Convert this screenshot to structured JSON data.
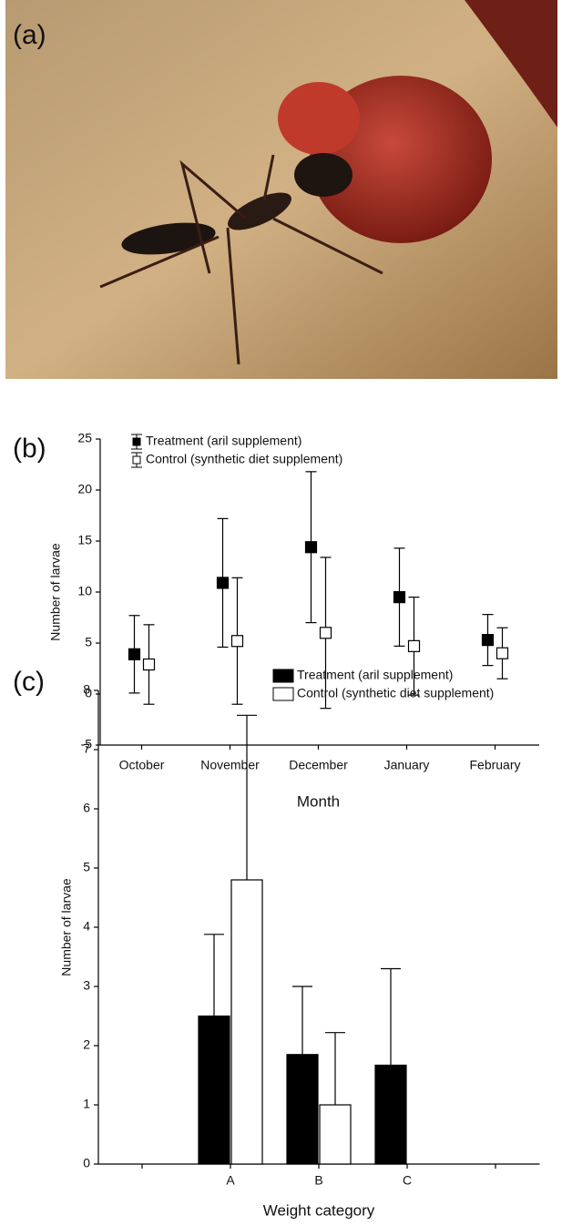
{
  "photo": {
    "label": "(a)"
  },
  "chart_data": [
    {
      "type": "scatter",
      "label": "(b)",
      "xlabel": "Month",
      "ylabel": "Number of larvae",
      "categories": [
        "October",
        "November",
        "December",
        "January",
        "February"
      ],
      "series": [
        {
          "name": "Treatment (aril supplement)",
          "color": "#000000",
          "values": [
            3.9,
            10.9,
            14.4,
            9.5,
            5.3
          ],
          "errors": [
            3.8,
            6.3,
            7.4,
            4.8,
            2.5
          ]
        },
        {
          "name": "Control (synthetic diet supplement)",
          "color": "#ffffff",
          "values": [
            2.9,
            5.2,
            6.0,
            4.7,
            4.0
          ],
          "errors": [
            3.9,
            6.2,
            7.4,
            4.8,
            2.5
          ]
        }
      ],
      "ylim": [
        -5,
        25
      ],
      "yticks": [
        -5,
        0,
        5,
        10,
        15,
        20,
        25
      ],
      "grid": false
    },
    {
      "type": "bar",
      "label": "(c)",
      "xlabel": "Weight category",
      "ylabel": "Number of larvae",
      "categories": [
        null,
        "A",
        "B",
        "C",
        null
      ],
      "series": [
        {
          "name": "Treatment (aril supplement)",
          "color": "#000000",
          "values": [
            null,
            2.5,
            1.85,
            1.67,
            null
          ],
          "errors": [
            null,
            1.38,
            1.15,
            1.63,
            null
          ]
        },
        {
          "name": "Control (synthetic diet supplement)",
          "color": "#ffffff",
          "values": [
            null,
            4.8,
            1.0,
            null,
            null
          ],
          "errors": [
            null,
            2.78,
            1.22,
            null,
            null
          ]
        }
      ],
      "ylim": [
        0,
        8
      ],
      "yticks": [
        0,
        1,
        2,
        3,
        4,
        5,
        6,
        7,
        8
      ],
      "grid": false
    }
  ]
}
